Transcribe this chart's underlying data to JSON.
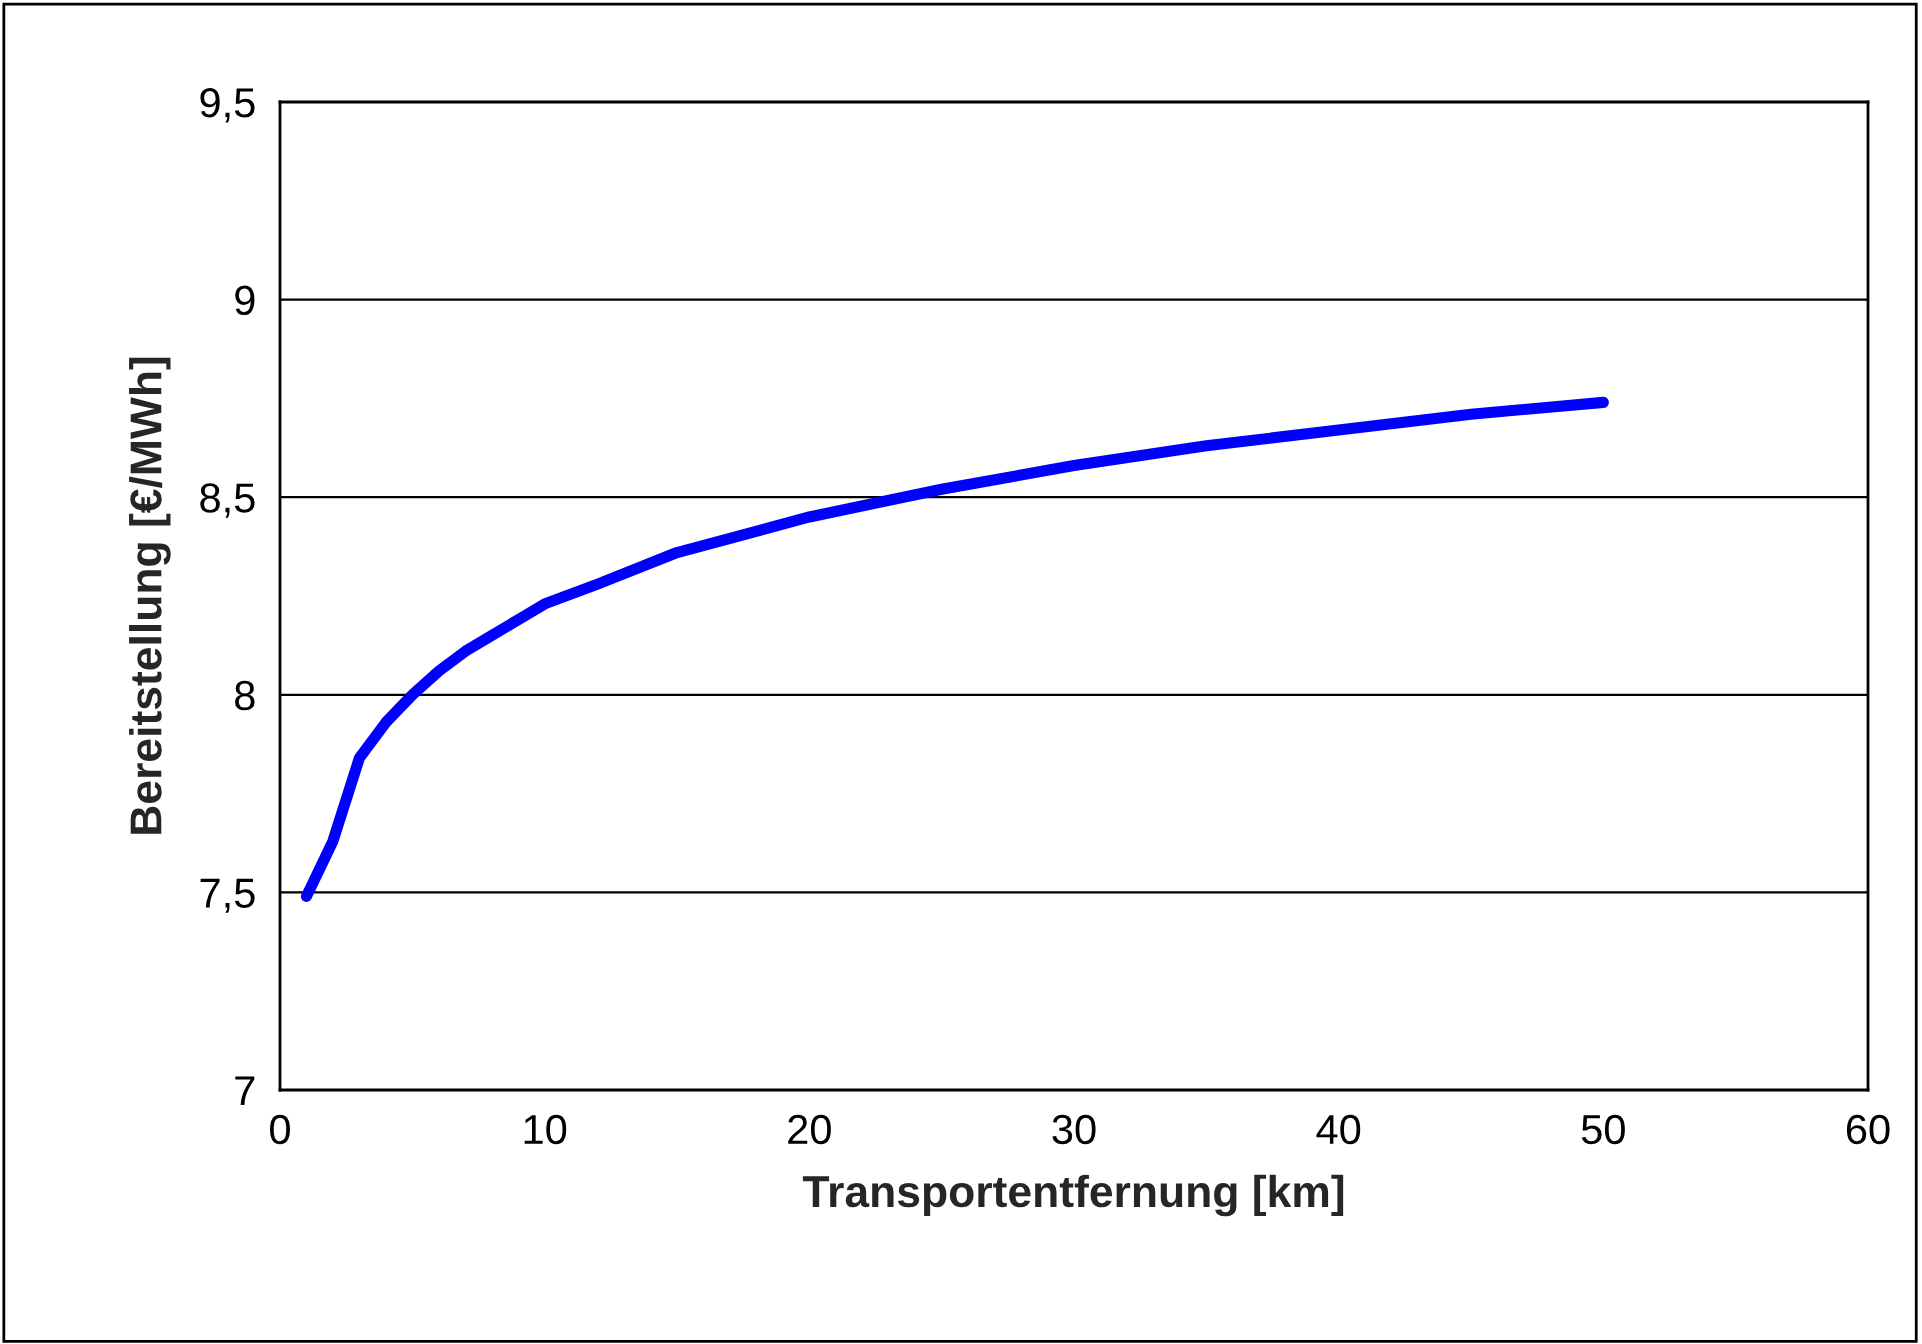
{
  "chart_data": {
    "type": "line",
    "xlabel": "Transportentfernung [km]",
    "ylabel": "Bereitstellung [€/MWh]",
    "x": [
      1,
      2,
      3,
      4,
      5,
      6,
      7,
      8,
      9,
      10,
      12,
      15,
      20,
      25,
      30,
      35,
      40,
      45,
      50
    ],
    "series": [
      {
        "color": "#0000ff",
        "values": [
          7.49,
          7.63,
          7.84,
          7.93,
          8.0,
          8.06,
          8.11,
          8.15,
          8.19,
          8.23,
          8.28,
          8.36,
          8.45,
          8.52,
          8.58,
          8.63,
          8.67,
          8.71,
          8.74
        ]
      }
    ],
    "xlim": [
      0,
      60
    ],
    "xticks": [
      0,
      10,
      20,
      30,
      40,
      50,
      60
    ],
    "ylim": [
      7,
      9.5
    ],
    "yticks": [
      {
        "value": 7,
        "label": "7"
      },
      {
        "value": 7.5,
        "label": "7,5"
      },
      {
        "value": 8,
        "label": "8"
      },
      {
        "value": 8.5,
        "label": "8,5"
      },
      {
        "value": 9,
        "label": "9"
      },
      {
        "value": 9.5,
        "label": "9,5"
      }
    ],
    "grid": "y",
    "legend": false,
    "marker": "none",
    "line_style": "solid"
  }
}
